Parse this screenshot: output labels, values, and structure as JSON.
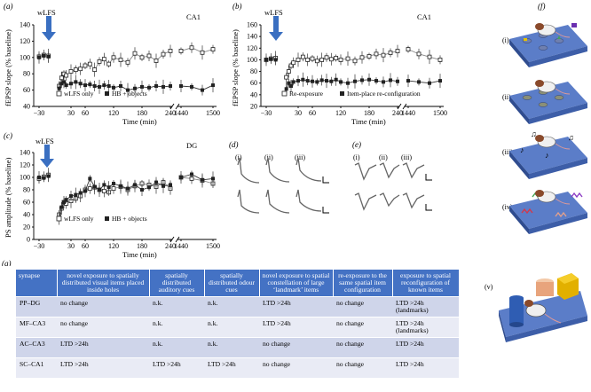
{
  "panels": {
    "a": {
      "label": "(a)",
      "region": "CA1",
      "ylabel": "fEPSP slope (% baseline)",
      "xlabel": "Time (min)",
      "stim": "wLFS",
      "legend": [
        "wLFS only",
        "HB + objects"
      ],
      "yticks": [
        "140",
        "120",
        "100",
        "80",
        "60",
        "40"
      ],
      "xticks": [
        "−30",
        "30",
        "60",
        "120",
        "180",
        "240",
        "1440",
        "1500"
      ]
    },
    "b": {
      "label": "(b)",
      "region": "CA1",
      "ylabel": "fEPSP slope (% baseline)",
      "xlabel": "Time (min)",
      "stim": "wLFS",
      "legend": [
        "Re-exposure",
        "Item-place re-configuration"
      ],
      "yticks": [
        "160",
        "140",
        "120",
        "100",
        "80",
        "60",
        "40",
        "20"
      ],
      "xticks": [
        "−30",
        "30",
        "60",
        "120",
        "180",
        "240",
        "1440",
        "1500"
      ]
    },
    "c": {
      "label": "(c)",
      "region": "DG",
      "ylabel": "PS amplitude (% baseline)",
      "xlabel": "Time (min)",
      "stim": "wLFS",
      "legend": [
        "wLFS only",
        "HB + objects"
      ],
      "yticks": [
        "140",
        "120",
        "100",
        "80",
        "60",
        "40",
        "20",
        "0"
      ],
      "xticks": [
        "−30",
        "30",
        "60",
        "120",
        "180",
        "240",
        "1440",
        "1500"
      ]
    },
    "d": {
      "label": "(d)",
      "sub": [
        "(i)",
        "(ii)",
        "(iii)"
      ]
    },
    "e": {
      "label": "(e)",
      "sub": [
        "(i)",
        "(ii)",
        "(iii)"
      ]
    },
    "f": {
      "label": "(f)",
      "sub": [
        "(i)",
        "(ii)",
        "(iii)",
        "(iv)",
        "(v)"
      ]
    },
    "g": {
      "label": "(g)"
    }
  },
  "chart_data": [
    {
      "type": "line",
      "panel": "a",
      "ylim": [
        40,
        140
      ],
      "series": [
        {
          "name": "wLFS only",
          "x": [
            -30,
            -20,
            -10,
            5,
            10,
            15,
            20,
            30,
            40,
            50,
            60,
            70,
            80,
            90,
            100,
            110,
            120,
            135,
            150,
            165,
            180,
            195,
            210,
            225,
            240,
            1440,
            1460,
            1480,
            1500
          ],
          "values": [
            101,
            103,
            102,
            65,
            75,
            80,
            78,
            83,
            85,
            86,
            90,
            92,
            85,
            95,
            98,
            92,
            100,
            97,
            94,
            105,
            100,
            102,
            96,
            104,
            108,
            108,
            112,
            106,
            110
          ]
        },
        {
          "name": "HB + objects",
          "x": [
            -30,
            -20,
            -10,
            5,
            10,
            15,
            20,
            30,
            40,
            50,
            60,
            70,
            80,
            90,
            100,
            110,
            120,
            135,
            150,
            165,
            180,
            195,
            210,
            225,
            240,
            1440,
            1460,
            1480,
            1500
          ],
          "values": [
            100,
            102,
            101,
            62,
            68,
            70,
            66,
            68,
            70,
            68,
            66,
            67,
            65,
            64,
            66,
            65,
            63,
            65,
            60,
            62,
            64,
            63,
            65,
            64,
            65,
            65,
            64,
            60,
            66
          ]
        }
      ]
    },
    {
      "type": "line",
      "panel": "b",
      "ylim": [
        20,
        160
      ],
      "series": [
        {
          "name": "Re-exposure",
          "x": [
            -30,
            -20,
            -10,
            5,
            10,
            15,
            20,
            30,
            40,
            50,
            60,
            70,
            80,
            90,
            100,
            110,
            120,
            135,
            150,
            165,
            180,
            195,
            210,
            225,
            240,
            1440,
            1460,
            1480,
            1500
          ],
          "values": [
            100,
            102,
            103,
            70,
            80,
            90,
            95,
            100,
            105,
            100,
            102,
            98,
            100,
            104,
            101,
            103,
            100,
            102,
            98,
            104,
            106,
            110,
            108,
            112,
            115,
            118,
            110,
            105,
            100
          ]
        },
        {
          "name": "Item-place re-configuration",
          "x": [
            -30,
            -20,
            -10,
            5,
            10,
            15,
            20,
            30,
            40,
            50,
            60,
            70,
            80,
            90,
            100,
            110,
            120,
            135,
            150,
            165,
            180,
            195,
            210,
            225,
            240,
            1440,
            1460,
            1480,
            1500
          ],
          "values": [
            100,
            101,
            100,
            50,
            60,
            55,
            62,
            64,
            66,
            64,
            63,
            62,
            65,
            64,
            63,
            66,
            62,
            60,
            63,
            65,
            66,
            64,
            62,
            65,
            63,
            64,
            62,
            60,
            64
          ]
        }
      ]
    },
    {
      "type": "line",
      "panel": "c",
      "ylim": [
        0,
        140
      ],
      "series": [
        {
          "name": "wLFS only",
          "x": [
            -30,
            -20,
            -10,
            5,
            10,
            15,
            20,
            30,
            40,
            50,
            60,
            70,
            80,
            90,
            100,
            110,
            120,
            135,
            150,
            165,
            180,
            195,
            210,
            225,
            240,
            1440,
            1460,
            1480,
            1500
          ],
          "values": [
            98,
            101,
            104,
            40,
            50,
            60,
            58,
            62,
            66,
            70,
            80,
            82,
            84,
            80,
            78,
            76,
            82,
            85,
            80,
            86,
            90,
            88,
            85,
            92,
            82,
            100,
            98,
            95,
            90
          ]
        },
        {
          "name": "HB + objects",
          "x": [
            -30,
            -20,
            -10,
            5,
            10,
            15,
            20,
            30,
            40,
            50,
            60,
            70,
            80,
            90,
            100,
            110,
            120,
            135,
            150,
            165,
            180,
            195,
            210,
            225,
            240,
            1440,
            1460,
            1480,
            1500
          ],
          "values": [
            100,
            99,
            102,
            35,
            52,
            60,
            64,
            70,
            72,
            75,
            78,
            98,
            85,
            80,
            88,
            84,
            90,
            86,
            82,
            88,
            80,
            84,
            92,
            86,
            88,
            100,
            105,
            96,
            98
          ]
        }
      ]
    }
  ],
  "table": {
    "headers": [
      "synapse",
      "novel exposure to spatially distributed visual items placed inside holes",
      "spatially distributed auditory cues",
      "spatially distributed odour cues",
      "novel exposure to spatial constellation of large ‘landmark’ items",
      "re-exposure to the same spatial item configuration",
      "exposure to spatial reconfiguration of known items"
    ],
    "rows": [
      [
        "PP–DG",
        "no change",
        "n.k.",
        "n.k.",
        "LTD >24h",
        "no change",
        "LTD >24h (landmarks)"
      ],
      [
        "MF–CA3",
        "no change",
        "n.k.",
        "n.k.",
        "LTD >24h",
        "no change",
        "LTD >24h (landmarks)"
      ],
      [
        "AC–CA3",
        "LTD >24h",
        "n.k.",
        "n.k.",
        "no change",
        "no change",
        "LTD >24h"
      ],
      [
        "SC–CA1",
        "LTD >24h",
        "LTD >24h",
        "LTD >24h",
        "no change",
        "no change",
        "LTD >24h"
      ]
    ]
  },
  "colors": {
    "header": "#4472c4",
    "row_dark": "#cfd5ea",
    "row_light": "#e9ebf5",
    "arrow": "#3a6fc1",
    "platform": "#5b7dc8"
  }
}
